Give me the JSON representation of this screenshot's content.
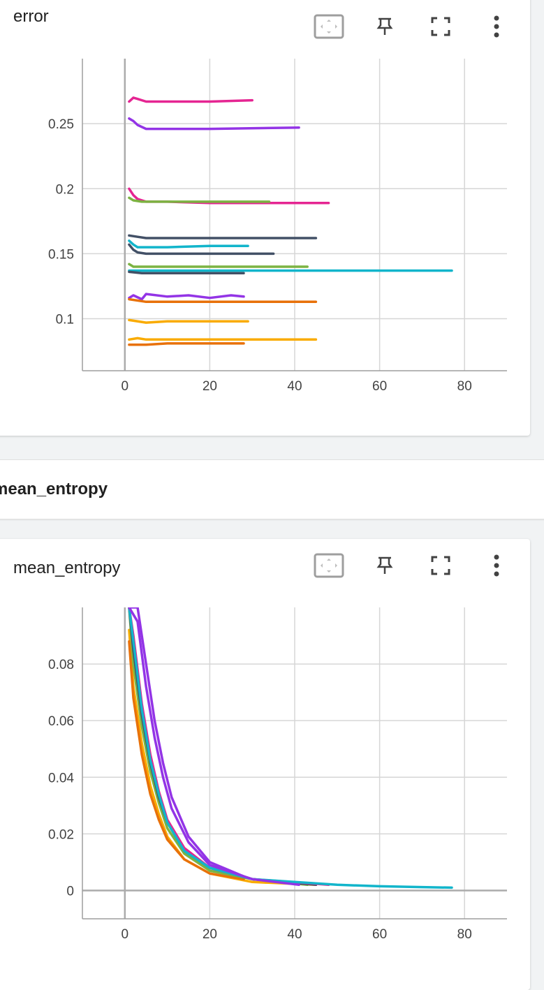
{
  "icons": {
    "fit": "fit-domain-icon",
    "pin": "pin-icon",
    "fullscreen": "fullscreen-icon",
    "more": "more-vert-icon"
  },
  "group_header": {
    "title": "mean_entropy"
  },
  "cards": [
    {
      "title": "error"
    },
    {
      "title": "mean_entropy"
    }
  ],
  "chart_data": [
    {
      "type": "line",
      "title": "error",
      "xlabel": "",
      "ylabel": "",
      "xlim": [
        -10,
        90
      ],
      "ylim": [
        0.06,
        0.3
      ],
      "x_ticks": [
        0,
        20,
        40,
        60,
        80
      ],
      "y_ticks": [
        0.1,
        0.15,
        0.2,
        0.25
      ],
      "x_tick_labels": [
        "0",
        "20",
        "40",
        "60",
        "80"
      ],
      "y_tick_labels": [
        "0.1",
        "0.15",
        "0.2",
        "0.25"
      ],
      "grid": true,
      "series": [
        {
          "color": "#e52592",
          "x": [
            1,
            2,
            3,
            5,
            10,
            20,
            30
          ],
          "y": [
            0.267,
            0.27,
            0.269,
            0.267,
            0.267,
            0.267,
            0.268
          ]
        },
        {
          "color": "#9334e6",
          "x": [
            1,
            2,
            3,
            5,
            10,
            20,
            41
          ],
          "y": [
            0.254,
            0.252,
            0.249,
            0.246,
            0.246,
            0.246,
            0.247
          ]
        },
        {
          "color": "#e52592",
          "x": [
            1,
            2,
            3,
            5,
            10,
            20,
            48
          ],
          "y": [
            0.2,
            0.195,
            0.192,
            0.19,
            0.19,
            0.189,
            0.189
          ]
        },
        {
          "color": "#7cb342",
          "x": [
            1,
            2,
            4,
            10,
            20,
            34
          ],
          "y": [
            0.193,
            0.191,
            0.19,
            0.19,
            0.19,
            0.19
          ]
        },
        {
          "color": "#425066",
          "x": [
            1,
            3,
            5,
            10,
            20,
            45
          ],
          "y": [
            0.164,
            0.163,
            0.162,
            0.162,
            0.162,
            0.162
          ]
        },
        {
          "color": "#12b5cb",
          "x": [
            1,
            2,
            3,
            5,
            10,
            20,
            29
          ],
          "y": [
            0.16,
            0.157,
            0.155,
            0.155,
            0.155,
            0.156,
            0.156
          ]
        },
        {
          "color": "#425066",
          "x": [
            1,
            2,
            3,
            5,
            10,
            20,
            35
          ],
          "y": [
            0.157,
            0.153,
            0.151,
            0.15,
            0.15,
            0.15,
            0.15
          ]
        },
        {
          "color": "#7cb342",
          "x": [
            1,
            2,
            4,
            10,
            20,
            43
          ],
          "y": [
            0.142,
            0.14,
            0.14,
            0.14,
            0.14,
            0.14
          ]
        },
        {
          "color": "#12b5cb",
          "x": [
            1,
            10,
            30,
            50,
            77
          ],
          "y": [
            0.137,
            0.137,
            0.137,
            0.137,
            0.137
          ]
        },
        {
          "color": "#425066",
          "x": [
            1,
            4,
            10,
            20,
            28
          ],
          "y": [
            0.136,
            0.135,
            0.135,
            0.135,
            0.135
          ]
        },
        {
          "color": "#9334e6",
          "x": [
            1,
            2,
            4,
            5,
            10,
            15,
            20,
            25,
            28
          ],
          "y": [
            0.116,
            0.118,
            0.115,
            0.119,
            0.117,
            0.118,
            0.116,
            0.118,
            0.117
          ]
        },
        {
          "color": "#e8710a",
          "x": [
            1,
            5,
            10,
            20,
            45
          ],
          "y": [
            0.115,
            0.113,
            0.113,
            0.113,
            0.113
          ]
        },
        {
          "color": "#f9ab00",
          "x": [
            1,
            5,
            10,
            20,
            29
          ],
          "y": [
            0.099,
            0.097,
            0.098,
            0.098,
            0.098
          ]
        },
        {
          "color": "#f9ab00",
          "x": [
            1,
            3,
            5,
            10,
            20,
            45
          ],
          "y": [
            0.084,
            0.085,
            0.084,
            0.084,
            0.084,
            0.084
          ]
        },
        {
          "color": "#e8710a",
          "x": [
            1,
            5,
            10,
            20,
            28
          ],
          "y": [
            0.08,
            0.08,
            0.081,
            0.081,
            0.081
          ]
        }
      ]
    },
    {
      "type": "line",
      "title": "mean_entropy",
      "xlabel": "",
      "ylabel": "",
      "xlim": [
        -10,
        90
      ],
      "ylim": [
        -0.01,
        0.1
      ],
      "x_ticks": [
        0,
        20,
        40,
        60,
        80
      ],
      "y_ticks": [
        0,
        0.02,
        0.04,
        0.06,
        0.08
      ],
      "x_tick_labels": [
        "0",
        "20",
        "40",
        "60",
        "80"
      ],
      "y_tick_labels": [
        "0",
        "0.02",
        "0.04",
        "0.06",
        "0.08"
      ],
      "grid": true,
      "series": [
        {
          "color": "#f9ab00",
          "x": [
            1,
            2,
            4,
            6,
            8,
            10,
            14,
            20,
            30,
            45
          ],
          "y": [
            0.092,
            0.072,
            0.052,
            0.037,
            0.027,
            0.019,
            0.011,
            0.006,
            0.003,
            0.002
          ]
        },
        {
          "color": "#e8710a",
          "x": [
            1,
            2,
            4,
            6,
            8,
            10,
            14,
            20,
            28
          ],
          "y": [
            0.088,
            0.068,
            0.048,
            0.034,
            0.025,
            0.018,
            0.011,
            0.006,
            0.004
          ]
        },
        {
          "color": "#7cb342",
          "x": [
            1,
            2,
            4,
            6,
            8,
            10,
            14,
            20,
            30,
            43
          ],
          "y": [
            0.1,
            0.08,
            0.058,
            0.042,
            0.031,
            0.022,
            0.013,
            0.007,
            0.004,
            0.002
          ]
        },
        {
          "color": "#425066",
          "x": [
            1,
            2,
            4,
            6,
            8,
            10,
            14,
            20,
            30,
            45
          ],
          "y": [
            0.1,
            0.085,
            0.062,
            0.045,
            0.033,
            0.024,
            0.014,
            0.008,
            0.004,
            0.002
          ]
        },
        {
          "color": "#e52592",
          "x": [
            1,
            2,
            4,
            6,
            8,
            10,
            14,
            20,
            30,
            48
          ],
          "y": [
            0.1,
            0.09,
            0.066,
            0.048,
            0.035,
            0.025,
            0.015,
            0.008,
            0.004,
            0.002
          ]
        },
        {
          "color": "#12b5cb",
          "x": [
            1,
            2,
            4,
            6,
            8,
            10,
            14,
            20,
            30,
            40,
            50,
            60,
            70,
            77
          ],
          "y": [
            0.1,
            0.088,
            0.064,
            0.046,
            0.034,
            0.024,
            0.014,
            0.008,
            0.004,
            0.003,
            0.002,
            0.0015,
            0.0012,
            0.001
          ]
        },
        {
          "color": "#9334e6",
          "x": [
            1,
            3,
            5,
            7,
            9,
            11,
            15,
            20,
            30,
            41
          ],
          "y": [
            0.1,
            0.095,
            0.072,
            0.054,
            0.04,
            0.029,
            0.017,
            0.009,
            0.004,
            0.002
          ]
        },
        {
          "color": "#9334e6",
          "x": [
            1,
            3,
            5,
            7,
            9,
            11,
            15,
            20,
            28
          ],
          "y": [
            0.1,
            0.1,
            0.08,
            0.06,
            0.045,
            0.033,
            0.019,
            0.01,
            0.005
          ]
        }
      ]
    }
  ]
}
